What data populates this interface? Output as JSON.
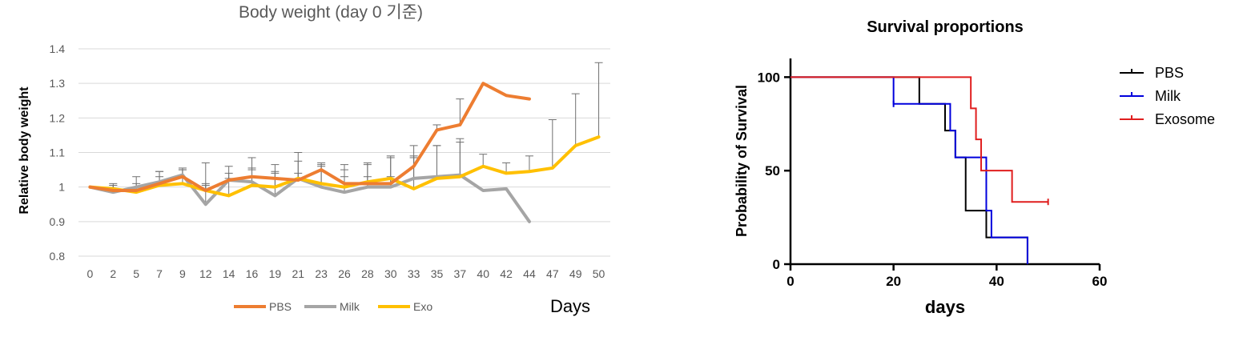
{
  "chart_data": [
    {
      "type": "line",
      "title": "Body weight (day 0 기준)",
      "ylabel": "Relative body weight",
      "xlabel": "Days",
      "categories": [
        "0",
        "2",
        "5",
        "7",
        "9",
        "12",
        "14",
        "16",
        "19",
        "21",
        "23",
        "26",
        "28",
        "30",
        "33",
        "35",
        "37",
        "40",
        "42",
        "44",
        "47",
        "49",
        "50"
      ],
      "ylim": [
        0.8,
        1.4
      ],
      "yticks": [
        0.8,
        0.9,
        1,
        1.1,
        1.2,
        1.3,
        1.4
      ],
      "ytick_labels": [
        "0.8",
        "0.9",
        "1",
        "1.1",
        "1.2",
        "1.3",
        "1.4"
      ],
      "grid": true,
      "legend": "bottom",
      "series": [
        {
          "name": "PBS",
          "color": "#ED7D31",
          "values": [
            1.0,
            0.99,
            0.99,
            1.01,
            1.03,
            0.99,
            1.02,
            1.03,
            1.025,
            1.02,
            1.05,
            1.01,
            1.01,
            1.01,
            1.06,
            1.165,
            1.18,
            1.3,
            1.265,
            1.255,
            null,
            null,
            null
          ],
          "errors": [
            0,
            0.02,
            0.02,
            0.02,
            0.02,
            0.02,
            0.02,
            0.02,
            0.02,
            0.02,
            0.02,
            0.02,
            0.02,
            0.02,
            0.03,
            0.015,
            0.075,
            0,
            0,
            0,
            0,
            0,
            0
          ]
        },
        {
          "name": "Milk",
          "color": "#A5A5A5",
          "values": [
            1.0,
            0.985,
            1.0,
            1.015,
            1.035,
            0.95,
            1.02,
            1.015,
            0.975,
            1.025,
            1.0,
            0.985,
            1.0,
            1.0,
            1.025,
            1.03,
            1.035,
            0.99,
            0.995,
            0.9,
            null,
            null,
            null
          ],
          "errors": [
            0,
            0.02,
            0.03,
            0.03,
            0.02,
            0.12,
            0.04,
            0.07,
            0.09,
            0.075,
            0.06,
            0.08,
            0.07,
            0.09,
            0.095,
            0.09,
            0.105,
            0,
            0,
            0,
            0,
            0,
            0
          ]
        },
        {
          "name": "Exo",
          "color": "#FFC000",
          "values": [
            1.0,
            0.995,
            0.985,
            1.005,
            1.01,
            0.99,
            0.975,
            1.005,
            1.0,
            1.025,
            1.01,
            1.0,
            1.015,
            1.025,
            0.995,
            1.025,
            1.03,
            1.06,
            1.04,
            1.045,
            1.055,
            1.12,
            1.145
          ],
          "errors": [
            0,
            0.01,
            0,
            0.04,
            0.04,
            0.015,
            0.05,
            0.05,
            0.04,
            0.05,
            0.055,
            0.05,
            0.05,
            0.06,
            0.09,
            0.095,
            0.1,
            0.035,
            0.03,
            0.045,
            0.14,
            0.15,
            0.215
          ]
        }
      ]
    },
    {
      "type": "line",
      "title": "Survival proportions",
      "ylabel": "Probability of Survival",
      "xlabel": "days",
      "xlim": [
        0,
        60
      ],
      "ylim": [
        0,
        110
      ],
      "xticks": [
        0,
        20,
        40,
        60
      ],
      "xtick_labels": [
        "0",
        "20",
        "40",
        "60"
      ],
      "yticks": [
        0,
        50,
        100
      ],
      "ytick_labels": [
        "0",
        "50",
        "100"
      ],
      "grid": false,
      "legend": "top-right",
      "series": [
        {
          "name": "PBS",
          "color": "#000000",
          "x": [
            0,
            25,
            30,
            32,
            34,
            38,
            46
          ],
          "y": [
            100,
            85.7,
            71.4,
            57.1,
            28.6,
            14.3,
            0
          ],
          "censored": []
        },
        {
          "name": "Milk",
          "color": "#0000DD",
          "x": [
            0,
            20,
            31,
            32,
            38,
            39,
            46
          ],
          "y": [
            100,
            85.7,
            71.4,
            57.1,
            28.6,
            14.3,
            0
          ],
          "censored": [
            [
              20,
              85.7
            ]
          ]
        },
        {
          "name": "Exosome",
          "color": "#E01E1E",
          "x": [
            0,
            35,
            36,
            37,
            43,
            50
          ],
          "y": [
            100,
            83.3,
            66.7,
            50,
            33.3,
            33.3
          ],
          "censored": [
            [
              50,
              33.3
            ]
          ]
        }
      ]
    }
  ]
}
